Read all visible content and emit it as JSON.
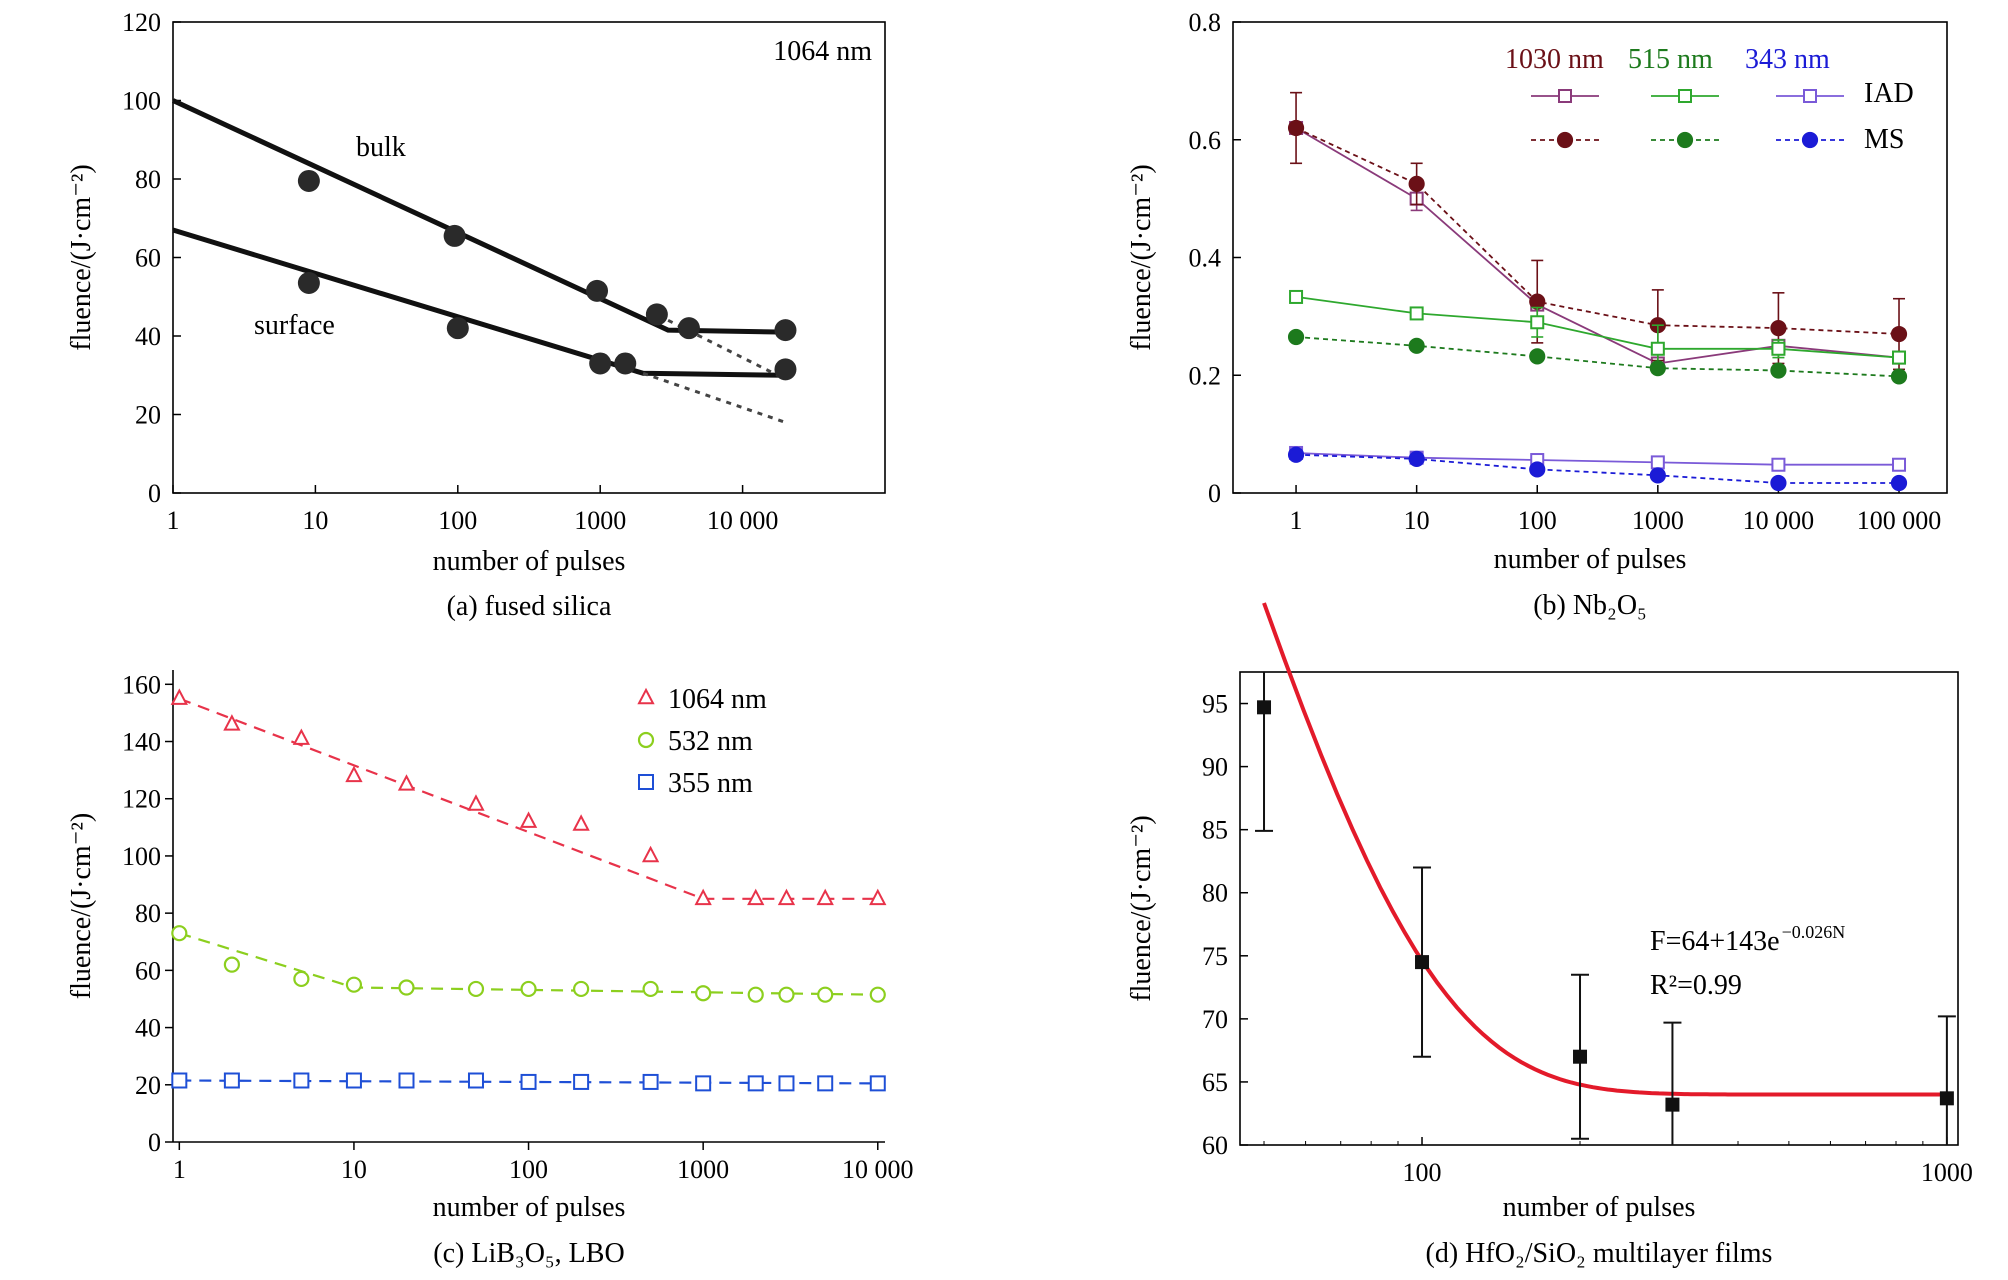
{
  "chart_data": [
    {
      "id": "a",
      "type": "scatter",
      "xscale": "log",
      "xlim": [
        1,
        100000
      ],
      "ylim": [
        0,
        120
      ],
      "xticks": [
        1,
        10,
        100,
        1000,
        10000
      ],
      "xtick_labels": [
        "1",
        "10",
        "100",
        "1000",
        "10 000"
      ],
      "yticks": [
        0,
        20,
        40,
        60,
        80,
        100,
        120
      ],
      "ytick_labels": [
        "0",
        "20",
        "40",
        "60",
        "80",
        "100",
        "120"
      ],
      "xlabel": "number of pulses",
      "ylabel": "fluence/(J·cm⁻²)",
      "caption": "(a) fused silica",
      "annotations": {
        "wavelength": "1064 nm",
        "bulk": "bulk",
        "surface": "surface"
      },
      "series": [
        {
          "name": "bulk",
          "points": [
            [
              9,
              79.5
            ],
            [
              95,
              65.5
            ],
            [
              950,
              51.5
            ],
            [
              2500,
              45.5
            ],
            [
              4200,
              42
            ],
            [
              20000,
              41.5
            ]
          ]
        },
        {
          "name": "surface",
          "points": [
            [
              9,
              53.5
            ],
            [
              100,
              42
            ],
            [
              1000,
              33
            ],
            [
              1500,
              33
            ],
            [
              20000,
              31.5
            ]
          ]
        }
      ],
      "fit_lines": [
        {
          "points": [
            [
              1,
              100
            ],
            [
              3000,
              41.5
            ],
            [
              20000,
              41
            ]
          ]
        },
        {
          "points": [
            [
              1,
              67
            ],
            [
              2000,
              30.5
            ],
            [
              20000,
              30
            ]
          ]
        }
      ],
      "extrapolation_lines": [
        {
          "points": [
            [
              3000,
              44
            ],
            [
              20000,
              29
            ]
          ]
        },
        {
          "points": [
            [
              2000,
              30.5
            ],
            [
              20000,
              18
            ]
          ]
        }
      ]
    },
    {
      "id": "b",
      "type": "line",
      "xscale": "log",
      "xlim": [
        0.3,
        250000
      ],
      "ylim": [
        0,
        0.8
      ],
      "xticks": [
        1,
        10,
        100,
        1000,
        10000,
        100000
      ],
      "xtick_labels": [
        "1",
        "10",
        "100",
        "1000",
        "10 000",
        "100 000"
      ],
      "yticks": [
        0,
        0.2,
        0.4,
        0.6,
        0.8
      ],
      "ytick_labels": [
        "0",
        "0.2",
        "0.4",
        "0.6",
        "0.8"
      ],
      "xlabel": "number of pulses",
      "ylabel": "fluence/(J·cm⁻²)",
      "caption": "(b) Nb₂O₅",
      "legend": {
        "wavelengths": [
          {
            "label": "1030 nm",
            "color": "#6b1017"
          },
          {
            "label": "515 nm",
            "color": "#1d7a1d"
          },
          {
            "label": "343 nm",
            "color": "#1b1bd6"
          }
        ],
        "rows": [
          "IAD",
          "MS"
        ]
      },
      "x": [
        1,
        10,
        100,
        1000,
        10000,
        100000
      ],
      "series": [
        {
          "group": "1030 nm",
          "kind": "IAD",
          "color": "#8a3a7a",
          "values": [
            0.62,
            0.5,
            0.32,
            0.22,
            0.25,
            0.23
          ],
          "errors": [
            0,
            0.02,
            0,
            0,
            0,
            0
          ]
        },
        {
          "group": "1030 nm",
          "kind": "MS",
          "color": "#6b1017",
          "values": [
            0.62,
            0.525,
            0.325,
            0.285,
            0.28,
            0.27
          ],
          "errors": [
            0.06,
            0.035,
            0.07,
            0.06,
            0.06,
            0.06
          ]
        },
        {
          "group": "515 nm",
          "kind": "IAD",
          "color": "#2ea82e",
          "values": [
            0.333,
            0.305,
            0.29,
            0.245,
            0.245,
            0.23
          ],
          "errors": [
            0.01,
            0,
            0.025,
            0.04,
            0.015,
            0.01
          ]
        },
        {
          "group": "515 nm",
          "kind": "MS",
          "color": "#1d7a1d",
          "values": [
            0.265,
            0.25,
            0.232,
            0.212,
            0.208,
            0.198
          ],
          "errors": [
            0,
            0,
            0,
            0,
            0,
            0
          ]
        },
        {
          "group": "343 nm",
          "kind": "IAD",
          "color": "#7a5ad8",
          "values": [
            0.068,
            0.06,
            0.056,
            0.052,
            0.048,
            0.048
          ],
          "errors": [
            0.005,
            0.005,
            0,
            0,
            0,
            0
          ]
        },
        {
          "group": "343 nm",
          "kind": "MS",
          "color": "#1b1bd6",
          "values": [
            0.065,
            0.058,
            0.04,
            0.03,
            0.017,
            0.017
          ],
          "errors": [
            0,
            0,
            0,
            0,
            0,
            0
          ]
        }
      ]
    },
    {
      "id": "c",
      "type": "scatter",
      "xscale": "log",
      "xlim": [
        0.92,
        11000
      ],
      "ylim": [
        0,
        165
      ],
      "xticks": [
        1,
        10,
        100,
        1000,
        10000
      ],
      "xtick_labels": [
        "1",
        "10",
        "100",
        "1000",
        "10 000"
      ],
      "yticks": [
        0,
        20,
        40,
        60,
        80,
        100,
        120,
        140,
        160
      ],
      "ytick_labels": [
        "0",
        "20",
        "40",
        "60",
        "80",
        "100",
        "120",
        "140",
        "160"
      ],
      "xlabel": "number of pulses",
      "ylabel": "fluence/(J·cm⁻²)",
      "caption": "(c) LiB₃O₅, LBO",
      "series": [
        {
          "name": "1064 nm",
          "marker": "triangle",
          "color": "#e8334a",
          "x": [
            1,
            2,
            5,
            10,
            20,
            50,
            100,
            200,
            500,
            1000,
            2000,
            3000,
            5000,
            10000
          ],
          "values": [
            155,
            146,
            141,
            128,
            125,
            118,
            112,
            111,
            100,
            85,
            85,
            85,
            85,
            85
          ],
          "trend": [
            [
              1,
              155
            ],
            [
              1000,
              85
            ],
            [
              10000,
              85
            ]
          ]
        },
        {
          "name": "532 nm",
          "marker": "circle",
          "color": "#8ccf1e",
          "x": [
            1,
            2,
            5,
            10,
            20,
            50,
            100,
            200,
            500,
            1000,
            2000,
            3000,
            5000,
            10000
          ],
          "values": [
            73,
            62,
            57,
            55,
            54,
            53.5,
            53.5,
            53.5,
            53.5,
            52,
            51.5,
            51.5,
            51.5,
            51.5
          ],
          "trend": [
            [
              1,
              73
            ],
            [
              10,
              54
            ],
            [
              10000,
              51.5
            ]
          ]
        },
        {
          "name": "355 nm",
          "marker": "square",
          "color": "#1e4fd6",
          "x": [
            1,
            2,
            5,
            10,
            20,
            50,
            100,
            200,
            500,
            1000,
            2000,
            3000,
            5000,
            10000
          ],
          "values": [
            21.5,
            21.5,
            21.5,
            21.5,
            21.5,
            21.5,
            21,
            21,
            21,
            20.5,
            20.5,
            20.5,
            20.5,
            20.5
          ],
          "trend": [
            [
              1,
              21.5
            ],
            [
              10000,
              20.5
            ]
          ]
        }
      ]
    },
    {
      "id": "d",
      "type": "scatter",
      "xscale": "log",
      "xlim": [
        45,
        1050
      ],
      "ylim": [
        60,
        97.5
      ],
      "xticks": [
        100,
        1000
      ],
      "xtick_labels": [
        "100",
        "1000"
      ],
      "yticks": [
        60,
        65,
        70,
        75,
        80,
        85,
        90,
        95
      ],
      "ytick_labels": [
        "60",
        "65",
        "70",
        "75",
        "80",
        "85",
        "90",
        "95"
      ],
      "xlabel": "number of pulses",
      "ylabel": "fluence/(J·cm⁻²)",
      "caption": "(d) HfO₂/SiO₂ multilayer films",
      "equation": {
        "line1": "F=64+143e",
        "exp": "−0.026N",
        "line2": "R²=0.99"
      },
      "series": [
        {
          "name": "data",
          "color": "#111111",
          "x": [
            50,
            100,
            200,
            300,
            1000
          ],
          "values": [
            94.7,
            74.5,
            67,
            63.2,
            63.7
          ],
          "errors": [
            9.8,
            7.5,
            6.5,
            6.5,
            6.5
          ]
        }
      ],
      "fit": {
        "color": "#e31a2a",
        "a": 64,
        "b": 143,
        "k": -0.026,
        "xrange": [
          50,
          1000
        ]
      }
    }
  ]
}
